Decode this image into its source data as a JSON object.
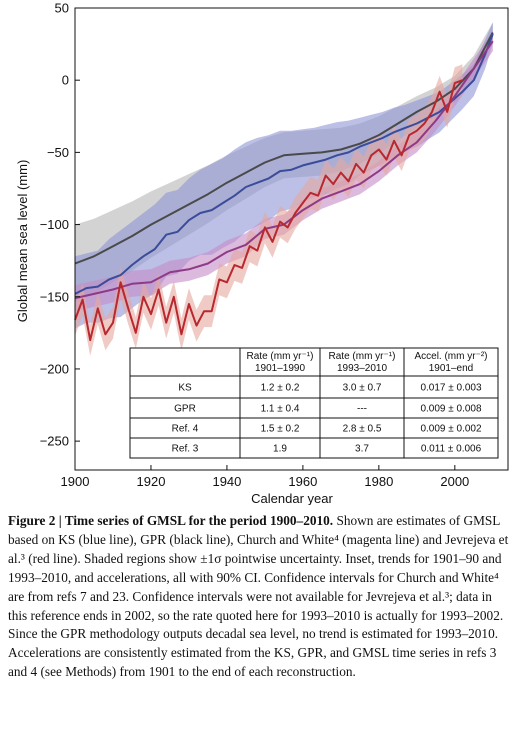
{
  "chart_data": {
    "type": "line",
    "xlabel": "Calendar year",
    "ylabel": "Global mean sea level (mm)",
    "xlim": [
      1900,
      2014
    ],
    "ylim": [
      -270,
      50
    ],
    "xticks": [
      1900,
      1920,
      1940,
      1960,
      1980,
      2000
    ],
    "yticks": [
      50,
      0,
      -50,
      -100,
      -150,
      -200,
      -250
    ],
    "xtick_labels": [
      "1900",
      "1920",
      "1940",
      "1960",
      "1980",
      "2000"
    ],
    "ytick_labels": [
      "50",
      "0",
      "−50",
      "−100",
      "−150",
      "−200",
      "−250"
    ],
    "grid": false,
    "series": [
      {
        "name": "GPR",
        "color": "#4a4a4a",
        "band_color": "#b5b5b5",
        "x": [
          1900,
          1905,
          1910,
          1915,
          1920,
          1925,
          1930,
          1935,
          1940,
          1945,
          1950,
          1955,
          1960,
          1965,
          1970,
          1975,
          1980,
          1985,
          1990,
          1995,
          2000,
          2005,
          2010
        ],
        "y": [
          -127,
          -122,
          -115,
          -108,
          -100,
          -93,
          -86,
          -79,
          -71,
          -64,
          -57,
          -52,
          -51,
          -50,
          -48,
          -44,
          -38,
          -30,
          -22,
          -15,
          -6,
          8,
          33
        ],
        "upper": [
          -100,
          -96,
          -90,
          -84,
          -77,
          -71,
          -65,
          -59,
          -52,
          -46,
          -40,
          -36,
          -35,
          -34,
          -33,
          -30,
          -25,
          -18,
          -11,
          -5,
          3,
          17,
          40
        ],
        "lower": [
          -154,
          -148,
          -140,
          -132,
          -123,
          -115,
          -107,
          -99,
          -90,
          -82,
          -74,
          -68,
          -67,
          -66,
          -63,
          -58,
          -51,
          -42,
          -33,
          -25,
          -15,
          -1,
          26
        ]
      },
      {
        "name": "KS",
        "color": "#3a4c9a",
        "band_color": "#8f94d6",
        "x": [
          1900,
          1903,
          1906,
          1909,
          1912,
          1915,
          1918,
          1921,
          1924,
          1927,
          1930,
          1933,
          1936,
          1939,
          1942,
          1945,
          1948,
          1951,
          1954,
          1957,
          1960,
          1963,
          1966,
          1969,
          1972,
          1975,
          1978,
          1981,
          1984,
          1987,
          1990,
          1993,
          1996,
          1999,
          2002,
          2005,
          2008,
          2010
        ],
        "y": [
          -148,
          -144,
          -143,
          -138,
          -135,
          -128,
          -122,
          -117,
          -107,
          -105,
          -97,
          -92,
          -90,
          -85,
          -80,
          -74,
          -71,
          -68,
          -63,
          -62,
          -59,
          -57,
          -55,
          -52,
          -50,
          -46,
          -43,
          -40,
          -36,
          -33,
          -30,
          -26,
          -22,
          -15,
          -8,
          0,
          18,
          32
        ],
        "upper": [
          -122,
          -120,
          -118,
          -110,
          -104,
          -98,
          -92,
          -86,
          -78,
          -76,
          -68,
          -62,
          -58,
          -54,
          -48,
          -43,
          -40,
          -38,
          -35,
          -35,
          -34,
          -33,
          -31,
          -29,
          -28,
          -26,
          -24,
          -22,
          -19,
          -17,
          -14,
          -11,
          -8,
          -2,
          4,
          11,
          28,
          40
        ],
        "lower": [
          -172,
          -168,
          -168,
          -165,
          -164,
          -158,
          -152,
          -148,
          -136,
          -134,
          -125,
          -121,
          -121,
          -116,
          -112,
          -105,
          -101,
          -97,
          -91,
          -89,
          -84,
          -81,
          -79,
          -75,
          -72,
          -66,
          -62,
          -58,
          -53,
          -49,
          -46,
          -41,
          -36,
          -28,
          -20,
          -11,
          8,
          25
        ]
      },
      {
        "name": "Ref. 4",
        "color": "#8e3a86",
        "band_color": "#c58cc8",
        "x": [
          1900,
          1905,
          1910,
          1915,
          1920,
          1925,
          1930,
          1935,
          1940,
          1945,
          1950,
          1955,
          1960,
          1965,
          1970,
          1975,
          1980,
          1985,
          1990,
          1995,
          2000,
          2005,
          2010
        ],
        "y": [
          -151,
          -148,
          -145,
          -141,
          -140,
          -133,
          -131,
          -127,
          -119,
          -114,
          -103,
          -100,
          -90,
          -82,
          -77,
          -72,
          -63,
          -52,
          -43,
          -28,
          -11,
          8,
          27
        ],
        "upper": [
          -142,
          -139,
          -136,
          -132,
          -131,
          -125,
          -123,
          -119,
          -111,
          -106,
          -96,
          -93,
          -83,
          -75,
          -70,
          -65,
          -56,
          -45,
          -36,
          -21,
          -4,
          15,
          34
        ],
        "lower": [
          -160,
          -157,
          -154,
          -150,
          -149,
          -141,
          -139,
          -135,
          -127,
          -122,
          -110,
          -107,
          -97,
          -89,
          -84,
          -79,
          -70,
          -59,
          -50,
          -35,
          -18,
          1,
          20
        ]
      },
      {
        "name": "Ref. 3",
        "color": "#b8282e",
        "band_color": "#e6a99e",
        "x": [
          1900,
          1902,
          1904,
          1906,
          1908,
          1910,
          1912,
          1914,
          1916,
          1918,
          1920,
          1922,
          1924,
          1926,
          1928,
          1930,
          1932,
          1934,
          1936,
          1938,
          1940,
          1942,
          1944,
          1946,
          1948,
          1950,
          1952,
          1954,
          1956,
          1958,
          1960,
          1962,
          1964,
          1966,
          1968,
          1970,
          1972,
          1974,
          1976,
          1978,
          1980,
          1982,
          1984,
          1986,
          1988,
          1990,
          1992,
          1994,
          1996,
          1998,
          2000,
          2002
        ],
        "y": [
          -166,
          -152,
          -180,
          -158,
          -176,
          -168,
          -140,
          -158,
          -175,
          -150,
          -162,
          -145,
          -168,
          -150,
          -176,
          -155,
          -170,
          -160,
          -160,
          -138,
          -140,
          -128,
          -130,
          -115,
          -118,
          -102,
          -112,
          -98,
          -102,
          -92,
          -85,
          -78,
          -80,
          -66,
          -72,
          -64,
          -70,
          -58,
          -64,
          -52,
          -48,
          -55,
          -42,
          -52,
          -38,
          -35,
          -30,
          -22,
          -8,
          -22,
          -2,
          0
        ],
        "upper": [
          -155,
          -141,
          -169,
          -147,
          -165,
          -157,
          -129,
          -147,
          -164,
          -139,
          -151,
          -134,
          -157,
          -139,
          -165,
          -144,
          -159,
          -149,
          -149,
          -127,
          -129,
          -117,
          -119,
          -104,
          -107,
          -91,
          -101,
          -87,
          -91,
          -81,
          -74,
          -67,
          -69,
          -55,
          -61,
          -53,
          -59,
          -47,
          -53,
          -41,
          -37,
          -44,
          -31,
          -41,
          -27,
          -24,
          -19,
          -11,
          3,
          -11,
          9,
          11
        ],
        "lower": [
          -177,
          -163,
          -191,
          -169,
          -187,
          -179,
          -151,
          -169,
          -186,
          -161,
          -173,
          -156,
          -179,
          -161,
          -187,
          -166,
          -181,
          -171,
          -171,
          -149,
          -151,
          -139,
          -141,
          -126,
          -129,
          -113,
          -123,
          -109,
          -113,
          -103,
          -96,
          -89,
          -91,
          -77,
          -83,
          -75,
          -81,
          -69,
          -75,
          -63,
          -59,
          -66,
          -53,
          -63,
          -49,
          -46,
          -41,
          -33,
          -19,
          -33,
          -13,
          -11
        ]
      }
    ],
    "inset_table": {
      "headers": [
        "",
        [
          "Rate (mm yr⁻¹)",
          "1901–1990"
        ],
        [
          "Rate (mm yr⁻¹)",
          "1993–2010"
        ],
        [
          "Accel. (mm yr⁻²)",
          "1901–end"
        ]
      ],
      "rows": [
        [
          "KS",
          "1.2 ± 0.2",
          "3.0 ± 0.7",
          "0.017 ± 0.003"
        ],
        [
          "GPR",
          "1.1 ± 0.4",
          "---",
          "0.009 ± 0.008"
        ],
        [
          "Ref. 4",
          "1.5 ± 0.2",
          "2.8 ± 0.5",
          "0.009 ± 0.002"
        ],
        [
          "Ref. 3",
          "1.9",
          "3.7",
          "0.011 ± 0.006"
        ]
      ]
    }
  },
  "caption": {
    "title": "Figure 2 | Time series of GMSL for the period 1900–2010.",
    "body": "Shown are estimates of GMSL based on KS (blue line), GPR (black line), Church and White⁴ (magenta line) and Jevrejeva et al.³ (red line). Shaded regions show ±1σ pointwise uncertainty. Inset, trends for 1901–90 and 1993–2010, and accelerations, all with 90% CI. Confidence intervals for Church and White⁴ are from refs 7 and 23. Confidence intervals were not available for Jevrejeva et al.³; data in this reference ends in 2002, so the rate quoted here for 1993–2010 is actually for 1993–2002. Since the GPR methodology outputs decadal sea level, no trend is estimated for 1993–2010. Accelerations are consistently estimated from the KS, GPR, and GMSL time series in refs 3 and 4 (see Methods) from 1901 to the end of each reconstruction."
  }
}
